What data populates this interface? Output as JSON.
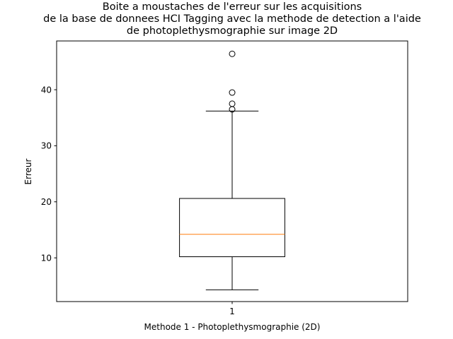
{
  "chart_data": {
    "type": "box",
    "title": [
      "Boite a moustaches de l'erreur sur les acquisitions",
      "de la base de donnees HCI Tagging avec la methode de detection a l'aide",
      "de photoplethysmographie sur image 2D"
    ],
    "xlabel": "Methode 1 - Photoplethysmographie (2D)",
    "ylabel": "Erreur",
    "categories": [
      "1"
    ],
    "ylim": [
      2.2,
      48.7
    ],
    "yticks": [
      10,
      20,
      30,
      40
    ],
    "boxes": [
      {
        "category": "1",
        "whisker_low": 4.3,
        "q1": 10.2,
        "median": 14.2,
        "q3": 20.6,
        "whisker_high": 36.2,
        "outliers": [
          36.5,
          37.5,
          39.5,
          46.4
        ]
      }
    ],
    "colors": {
      "median": "#ff7f0e",
      "box": "#000000",
      "outlier": "#000000"
    }
  }
}
